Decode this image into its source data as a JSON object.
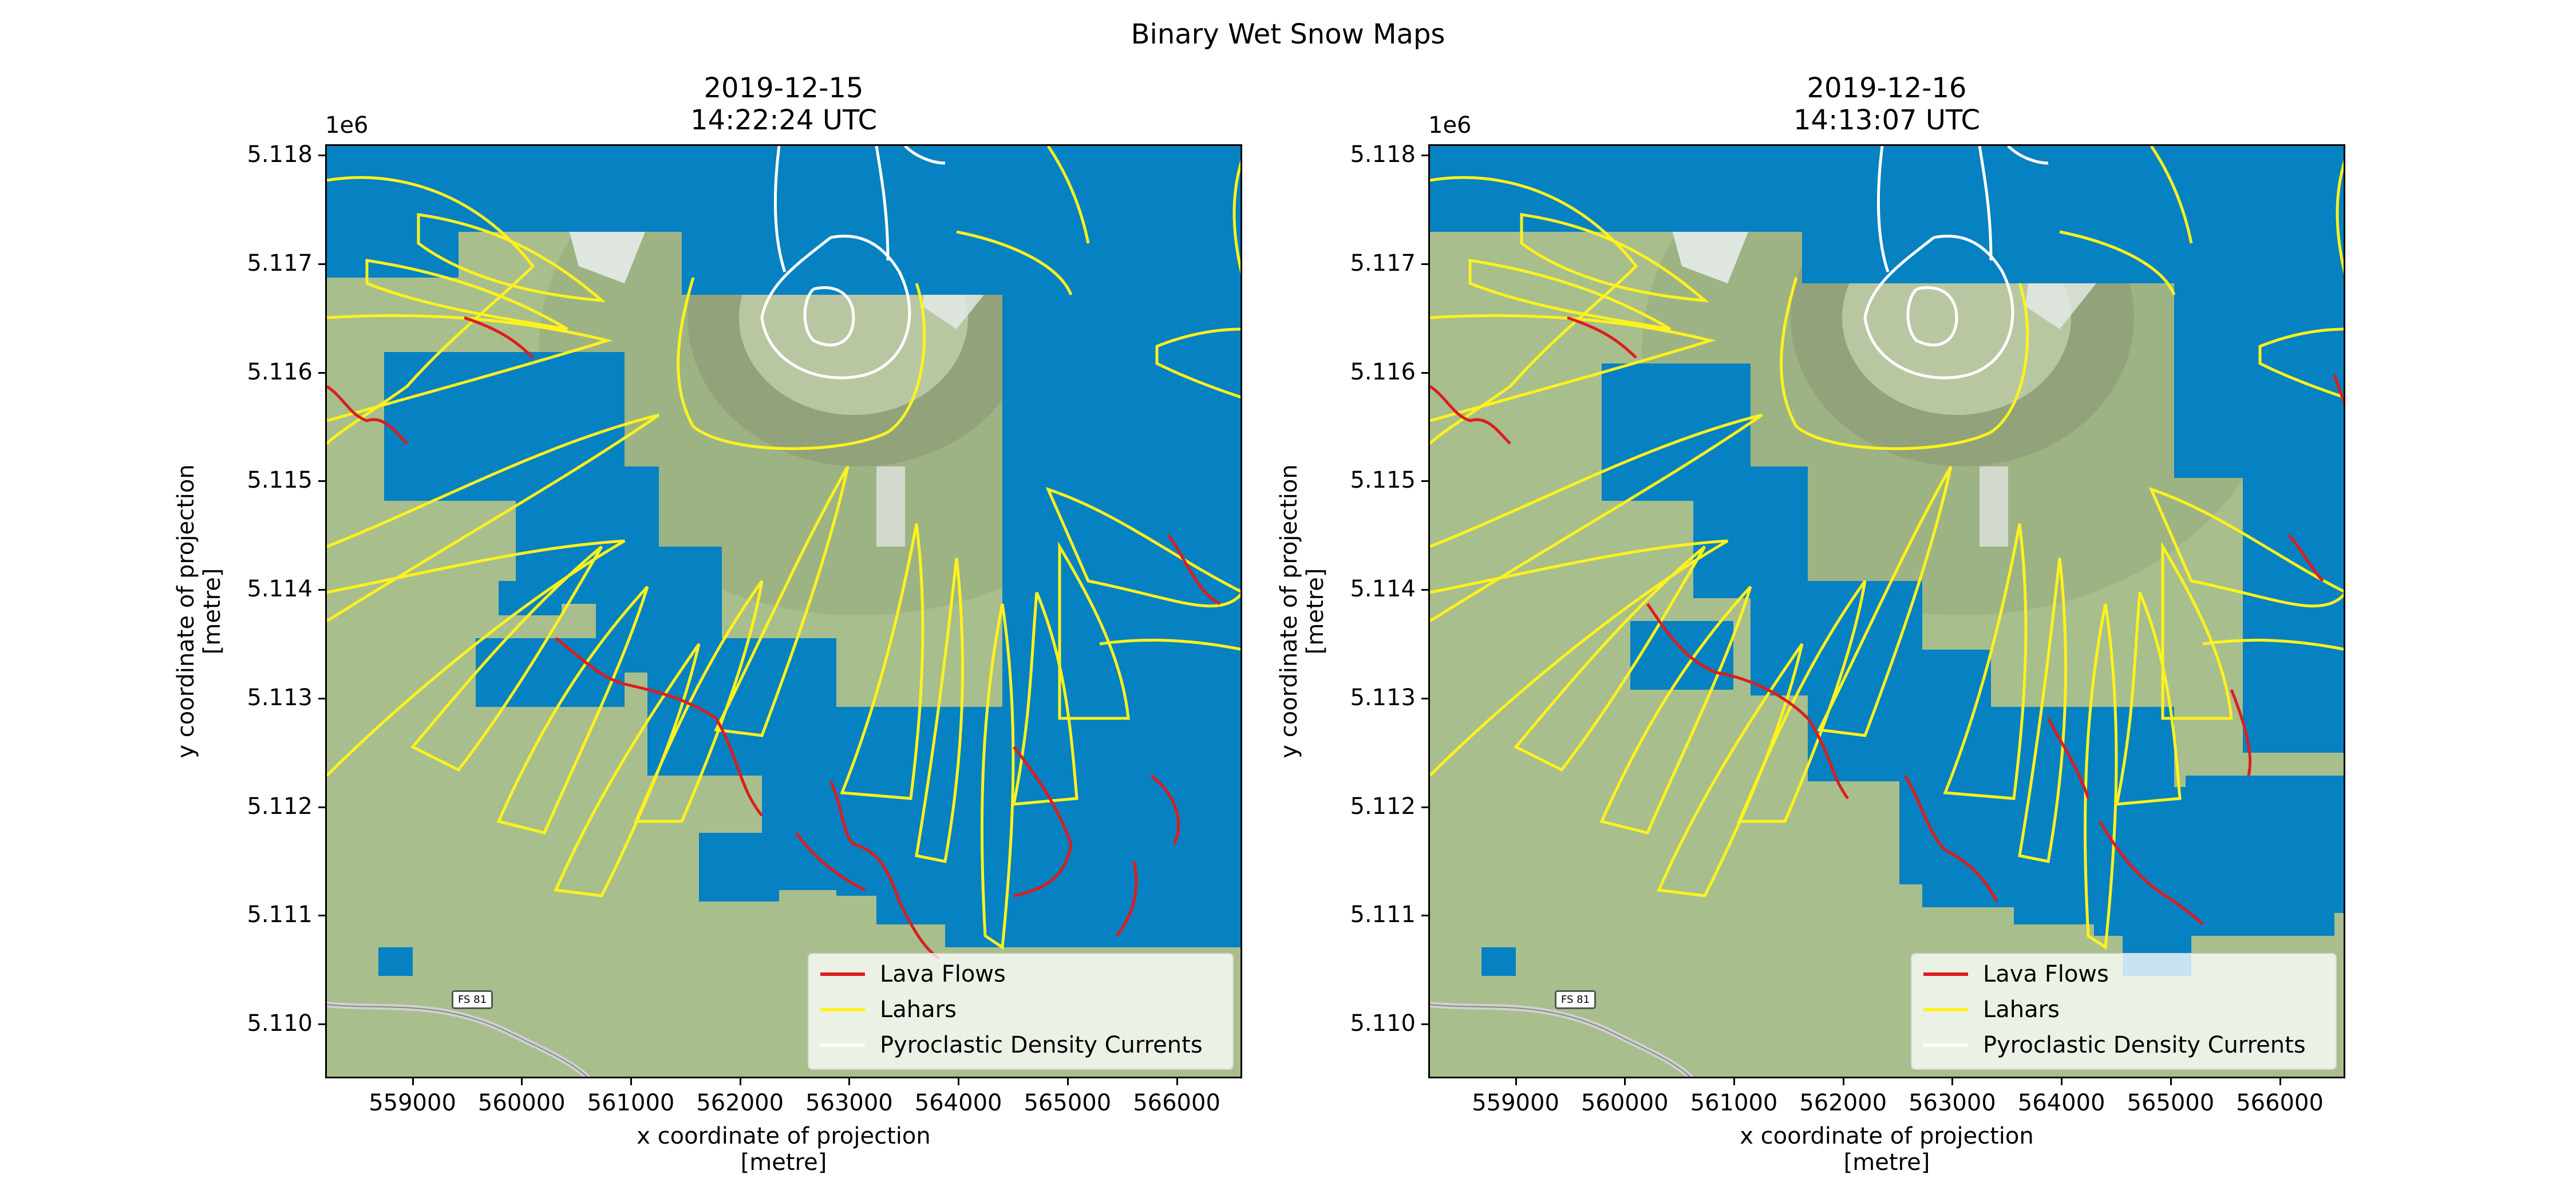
{
  "figure": {
    "title": "Binary Wet Snow Maps"
  },
  "colors": {
    "wet_snow": "#0681c1",
    "terrain": "#a8be8c",
    "lava_flows": "#dd1d1d",
    "lahars": "#fff21e",
    "pyroclastic_density_currents": "#ffffff"
  },
  "legend": {
    "placement": "lower-right",
    "entries": [
      {
        "label": "Lava Flows",
        "color": "#dd1d1d"
      },
      {
        "label": "Lahars",
        "color": "#fff21e"
      },
      {
        "label": "Pyroclastic Density Currents",
        "color": "#ffffff"
      }
    ]
  },
  "axes": {
    "xlabel_line1": "x coordinate of projection",
    "xlabel_line2": "[metre]",
    "ylabel_line1": "y coordinate of projection",
    "ylabel_line2": "[metre]",
    "y_offset_text": "1e6",
    "xticks": [
      "559000",
      "560000",
      "561000",
      "562000",
      "563000",
      "564000",
      "565000",
      "566000"
    ],
    "yticks": [
      "5.118",
      "5.117",
      "5.116",
      "5.115",
      "5.114",
      "5.113",
      "5.112",
      "5.111",
      "5.110"
    ],
    "xlim": [
      558200,
      566600
    ],
    "ylim": [
      5109500,
      5118100
    ]
  },
  "basemap": {
    "road_sign": "FS 81"
  },
  "panels": [
    {
      "date": "2019-12-15",
      "time": "14:22:24 UTC"
    },
    {
      "date": "2019-12-16",
      "time": "14:13:07 UTC"
    }
  ]
}
